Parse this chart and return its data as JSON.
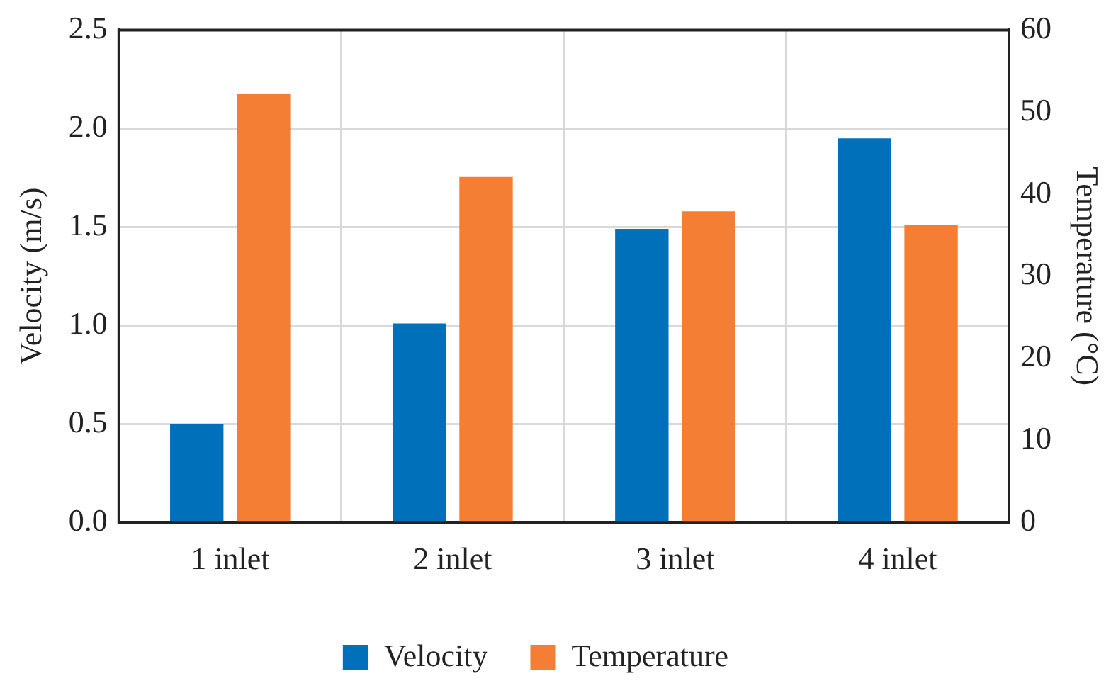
{
  "chart_data": {
    "type": "bar",
    "categories": [
      "1 inlet",
      "2 inlet",
      "3 inlet",
      "4 inlet"
    ],
    "series": [
      {
        "name": "Velocity",
        "color": "#0070ba",
        "values": [
          0.5,
          1.01,
          1.49,
          1.95
        ]
      },
      {
        "name": "Temperature",
        "color": "#f37e34",
        "values": [
          52.2,
          42.1,
          37.9,
          36.2
        ],
        "axis": "y2"
      }
    ],
    "ylabel": "Velocity (m/s)",
    "y2label": "Temperature (°C)",
    "ylim": [
      0,
      2.5
    ],
    "yticks": [
      {
        "value": 0,
        "label": "0.0"
      },
      {
        "value": 0.5,
        "label": "0.5"
      },
      {
        "value": 1,
        "label": "1.0"
      },
      {
        "value": 1.5,
        "label": "1.5"
      },
      {
        "value": 2,
        "label": "2.0"
      },
      {
        "value": 2.5,
        "label": "2.5"
      }
    ],
    "y2lim": [
      0,
      60
    ],
    "y2ticks": [
      0,
      10,
      20,
      30,
      40,
      50,
      60
    ],
    "grid": true,
    "legend": "bottom"
  }
}
